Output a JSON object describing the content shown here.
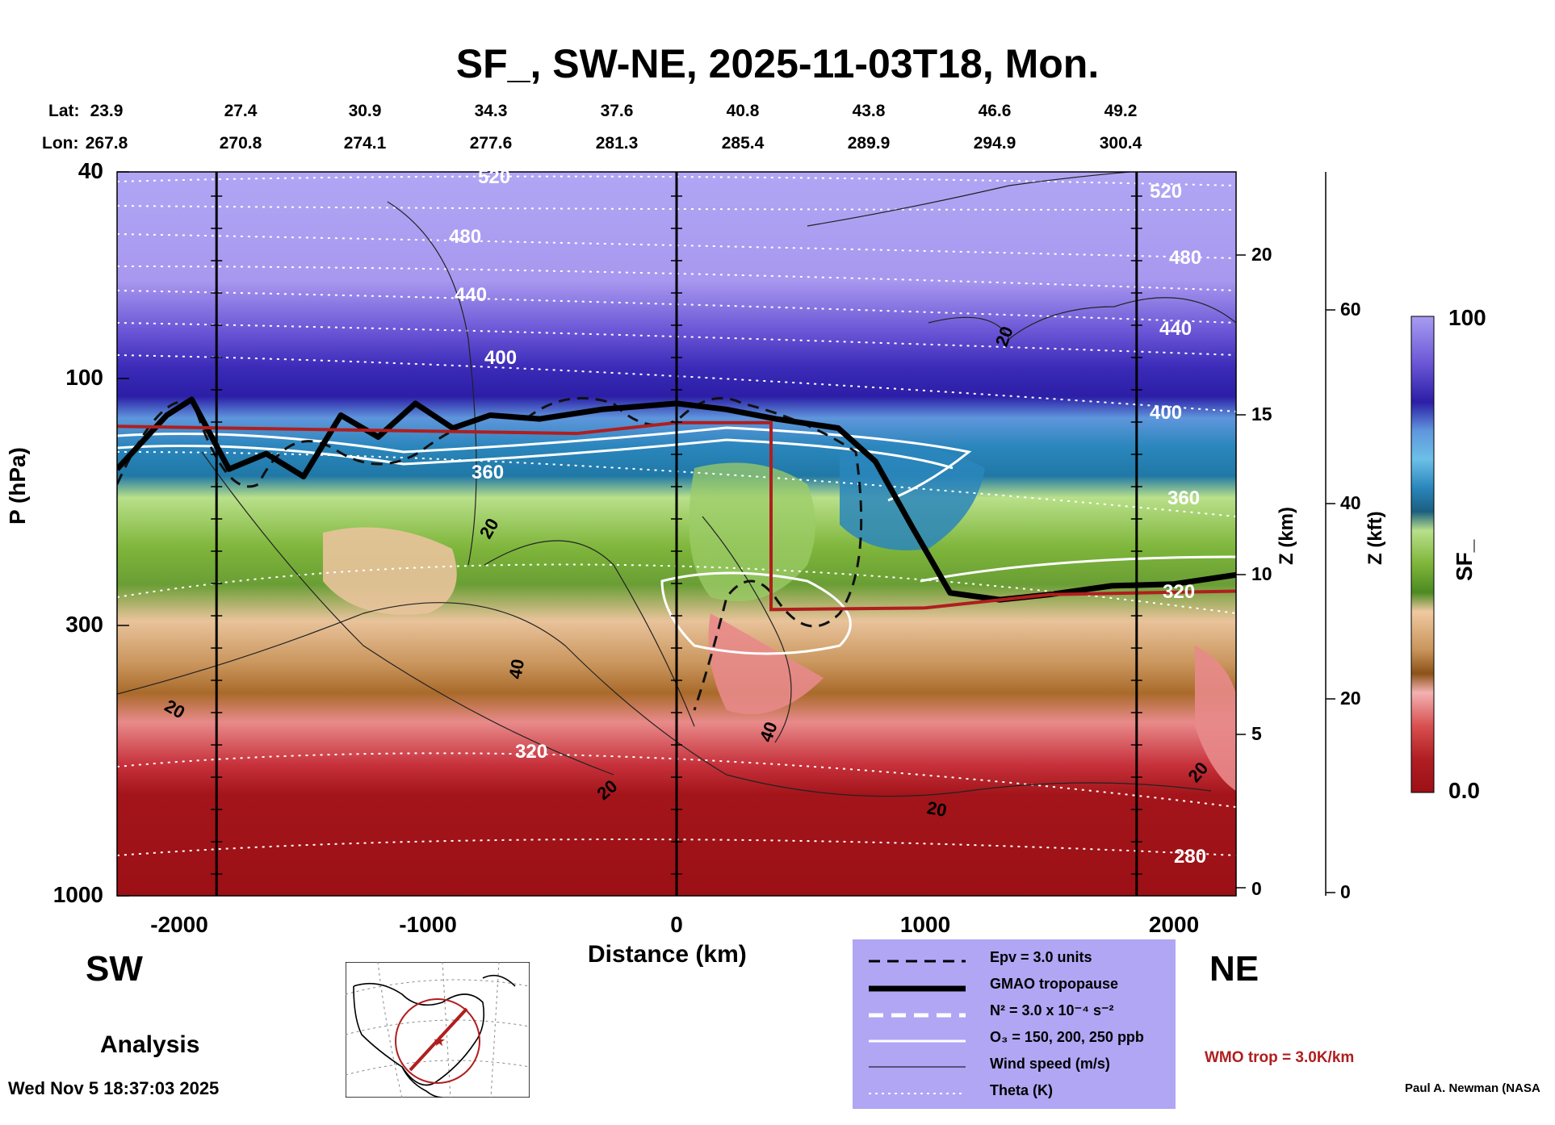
{
  "chart_data": {
    "type": "heatmap",
    "title": "SF_, SW-NE, 2025-11-03T18, Mon.",
    "xlabel": "Distance (km)",
    "ylabel": "P (hPa)",
    "y2label": "Z (km)",
    "y3label": "Z (kft)",
    "colorbar_label": "SF_",
    "colorbar_max": "100",
    "colorbar_min": "0.0",
    "colorbar_range": [
      0,
      100
    ],
    "xlim": [
      -2250,
      2250
    ],
    "ylim": [
      1000,
      40
    ],
    "y_scale": "log",
    "x_ticks": [
      "-2000",
      "-1000",
      "0",
      "1000",
      "2000"
    ],
    "p_ticks": [
      "40",
      "100",
      "300",
      "1000"
    ],
    "z_km_ticks": [
      "20",
      "15",
      "10",
      "5",
      "0"
    ],
    "z_kft_ticks": [
      "60",
      "40",
      "20",
      "0"
    ],
    "lat_label": "Lat:",
    "lon_label": "Lon:",
    "lat": [
      "23.9",
      "27.4",
      "30.9",
      "34.3",
      "37.6",
      "40.8",
      "43.8",
      "46.6",
      "49.2"
    ],
    "lon": [
      "267.8",
      "270.8",
      "274.1",
      "277.6",
      "281.3",
      "285.4",
      "289.9",
      "294.9",
      "300.4"
    ],
    "theta_labels": [
      "520",
      "480",
      "440",
      "400",
      "360",
      "320",
      "280"
    ],
    "wind_labels": [
      "20",
      "40"
    ],
    "vertical_markers_km": [
      -1850,
      0,
      1850
    ],
    "gmao_tropopause_hpa": [
      {
        "x": -2250,
        "p": 150
      },
      {
        "x": -2050,
        "p": 118
      },
      {
        "x": -1950,
        "p": 110
      },
      {
        "x": -1800,
        "p": 150
      },
      {
        "x": -1650,
        "p": 140
      },
      {
        "x": -1500,
        "p": 155
      },
      {
        "x": -1350,
        "p": 118
      },
      {
        "x": -1200,
        "p": 130
      },
      {
        "x": -1050,
        "p": 112
      },
      {
        "x": -900,
        "p": 125
      },
      {
        "x": -750,
        "p": 118
      },
      {
        "x": -550,
        "p": 120
      },
      {
        "x": -300,
        "p": 115
      },
      {
        "x": 0,
        "p": 112
      },
      {
        "x": 200,
        "p": 115
      },
      {
        "x": 400,
        "p": 120
      },
      {
        "x": 650,
        "p": 125
      },
      {
        "x": 800,
        "p": 145
      },
      {
        "x": 950,
        "p": 195
      },
      {
        "x": 1100,
        "p": 260
      },
      {
        "x": 1300,
        "p": 268
      },
      {
        "x": 1500,
        "p": 262
      },
      {
        "x": 1750,
        "p": 252
      },
      {
        "x": 2000,
        "p": 250
      },
      {
        "x": 2250,
        "p": 240
      }
    ],
    "wmo_tropopause_hpa": [
      {
        "x": -2250,
        "p": 124
      },
      {
        "x": -400,
        "p": 128
      },
      {
        "x": 0,
        "p": 122
      },
      {
        "x": 380,
        "p": 122
      },
      {
        "x": 380,
        "p": 280
      },
      {
        "x": 1000,
        "p": 278
      },
      {
        "x": 1500,
        "p": 262
      },
      {
        "x": 2250,
        "p": 258
      }
    ],
    "legend": [
      {
        "style": "dashed-black",
        "label": "Epv = 3.0 units"
      },
      {
        "style": "thick-black",
        "label": "GMAO tropopause"
      },
      {
        "style": "dashed-white",
        "label": "N² = 3.0 x 10⁻⁴ s⁻²"
      },
      {
        "style": "solid-white",
        "label": "O₃ = 150, 200, 250 ppb"
      },
      {
        "style": "thin-black",
        "label": "Wind speed (m/s)"
      },
      {
        "style": "dotted-white",
        "label": "Theta (K)"
      }
    ],
    "wmo_label": "WMO trop = 3.0K/km",
    "legend_colors": {
      "legend_bg": "#b0a6f4",
      "wmo": "#b01e1e"
    },
    "colors": {
      "stratosphere_top": "#b0a6f4",
      "stratosphere_mid": "#2c1ea6",
      "tropopause_blue": "#2a86bc",
      "upper_trop_green": "#7eb53a",
      "mid_trop_tan": "#c9955c",
      "lower_trop_red": "#a3151a"
    }
  },
  "footer": {
    "sw_label": "SW",
    "ne_label": "NE",
    "analysis_label": "Analysis",
    "timestamp": "Wed Nov  5 18:37:03 2025",
    "credit": "Paul A. Newman (NASA"
  }
}
